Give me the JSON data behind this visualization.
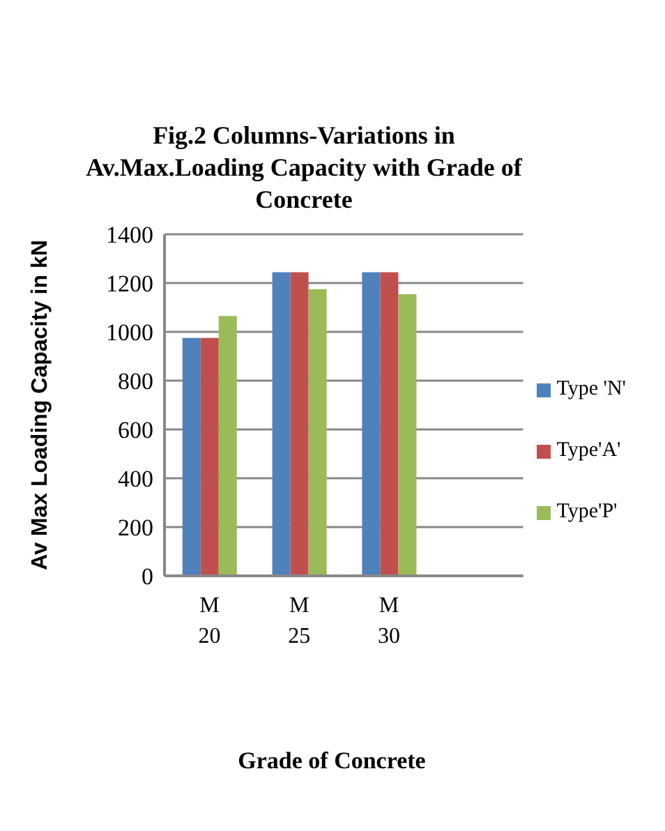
{
  "chart_data": {
    "type": "bar",
    "title": "Fig.2 Columns-Variations in Av.Max.Loading Capacity with Grade of Concrete",
    "xlabel": "Grade of Concrete",
    "ylabel": "Av Max Loading Capacity in kN",
    "categories": [
      "M 20",
      "M 25",
      "M 30"
    ],
    "series": [
      {
        "name": "Type 'N'",
        "color": "#4f81bd",
        "values": [
          975,
          1244,
          1244
        ]
      },
      {
        "name": "Type'A'",
        "color": "#c0504d",
        "values": [
          975,
          1244,
          1244
        ]
      },
      {
        "name": "Type'P'",
        "color": "#9bbb59",
        "values": [
          1065,
          1175,
          1154
        ]
      }
    ],
    "ylim": [
      0,
      1400
    ],
    "yticks": [
      0,
      200,
      400,
      600,
      800,
      1000,
      1200,
      1400
    ],
    "grid": "y",
    "legend": "right"
  }
}
